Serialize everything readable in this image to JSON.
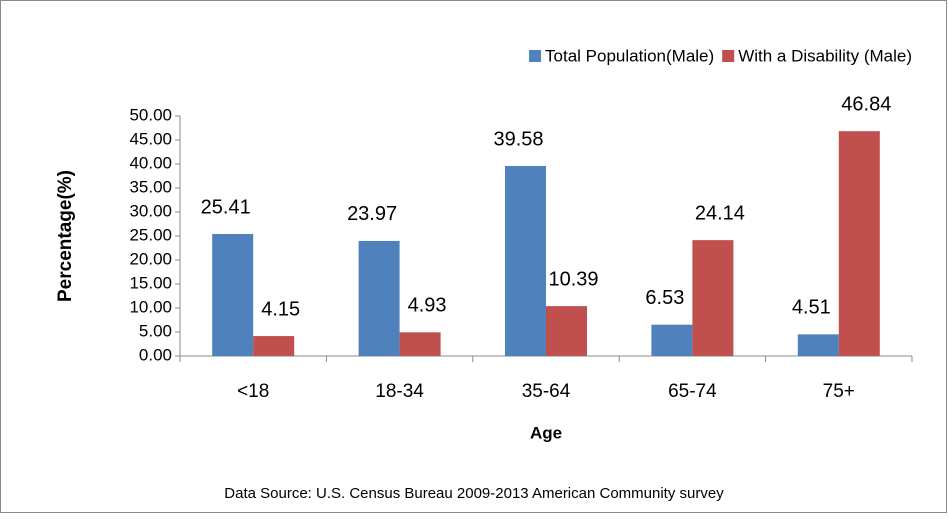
{
  "chart_data": {
    "type": "bar",
    "categories": [
      "<18",
      "18-34",
      "35-64",
      "65-74",
      "75+"
    ],
    "series": [
      {
        "name": "Total Population(Male)",
        "color": "#4f81bd",
        "values": [
          25.41,
          23.97,
          39.58,
          6.53,
          4.51
        ]
      },
      {
        "name": "With a Disability (Male)",
        "color": "#c0504d",
        "values": [
          4.15,
          4.93,
          10.39,
          24.14,
          46.84
        ]
      }
    ],
    "ylabel": "Percentage(%)",
    "xlabel": "Age",
    "source": "Data Source: U.S. Census Bureau 2009-2013 American Community survey",
    "ylim": [
      0,
      50
    ],
    "yticks": [
      {
        "value": 0,
        "label": "0.00"
      },
      {
        "value": 5,
        "label": "5.00"
      },
      {
        "value": 10,
        "label": "10.00"
      },
      {
        "value": 15,
        "label": "15.00"
      },
      {
        "value": 20,
        "label": "20.00"
      },
      {
        "value": 25,
        "label": "25.00"
      },
      {
        "value": 30,
        "label": "30.00"
      },
      {
        "value": 35,
        "label": "35.00"
      },
      {
        "value": 40,
        "label": "40.00"
      },
      {
        "value": 45,
        "label": "45.00"
      },
      {
        "value": 50,
        "label": "50.00"
      }
    ],
    "legend": "top-right"
  }
}
